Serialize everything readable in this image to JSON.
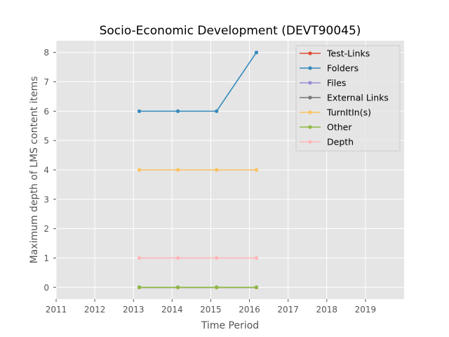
{
  "chart_data": {
    "type": "line",
    "title": "Socio-Economic Development (DEVT90045)",
    "xlabel": "Time Period",
    "ylabel": "Maximum depth of LMS content items",
    "xlim": [
      2011,
      2020
    ],
    "ylim": [
      -0.4,
      8.4
    ],
    "xticks": [
      2011,
      2012,
      2013,
      2014,
      2015,
      2016,
      2017,
      2018,
      2019
    ],
    "yticks": [
      0,
      1,
      2,
      3,
      4,
      5,
      6,
      7,
      8
    ],
    "grid": true,
    "legend_position": "top-right",
    "x": [
      2013.15,
      2014.15,
      2015.15,
      2016.18
    ],
    "series": [
      {
        "name": "Test-Links",
        "color": "#E24A33",
        "values": [
          0,
          0,
          0,
          0
        ]
      },
      {
        "name": "Folders",
        "color": "#348ABD",
        "values": [
          6,
          6,
          6,
          8
        ]
      },
      {
        "name": "Files",
        "color": "#988ED5",
        "values": [
          0,
          0,
          0,
          0
        ]
      },
      {
        "name": "External Links",
        "color": "#777777",
        "values": [
          0,
          0,
          0,
          0
        ]
      },
      {
        "name": "TurnItIn(s)",
        "color": "#FBC15E",
        "values": [
          4,
          4,
          4,
          4
        ]
      },
      {
        "name": "Other",
        "color": "#8EBA42",
        "values": [
          0,
          0,
          0,
          0
        ]
      },
      {
        "name": "Depth",
        "color": "#FFB5B8",
        "values": [
          1,
          1,
          1,
          1
        ]
      }
    ]
  }
}
